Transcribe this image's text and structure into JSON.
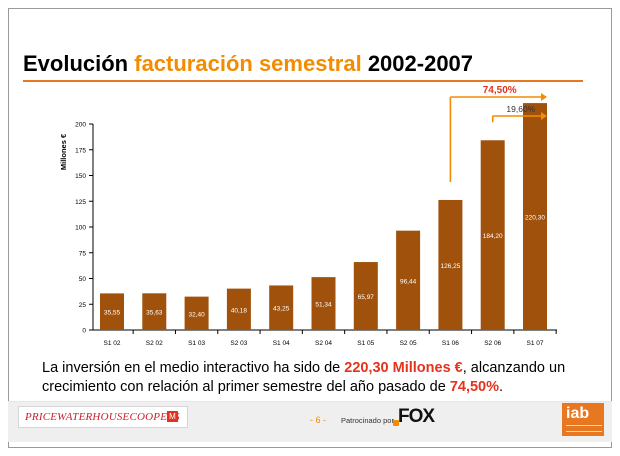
{
  "title": {
    "part1": "Evolución",
    "part2": "facturación semestral",
    "part3": "2002-2007"
  },
  "chart_data": {
    "type": "bar",
    "ylabel": "Millones €",
    "ylim": [
      0,
      200
    ],
    "yticks": [
      0,
      25,
      50,
      75,
      100,
      125,
      150,
      175,
      200
    ],
    "categories": [
      "S1 02",
      "S2 02",
      "S1 03",
      "S2 03",
      "S1 04",
      "S2 04",
      "S1 05",
      "S2 05",
      "S1 06",
      "S2 06",
      "S1 07"
    ],
    "values": [
      35.55,
      35.63,
      32.4,
      40.18,
      43.25,
      51.34,
      65.97,
      96.44,
      126.25,
      184.2,
      220.3
    ],
    "value_labels": [
      "35,55",
      "35,63",
      "32,40",
      "40,18",
      "43,25",
      "51,34",
      "65,97",
      "96,44",
      "126,25",
      "184,20",
      "220,30"
    ],
    "bar_color": "#a0520d",
    "annotations": [
      {
        "label": "74,50%",
        "from_index": 8,
        "to_index": 10,
        "color": "#e4331c",
        "bold": true
      },
      {
        "label": "19,60%",
        "from_index": 9,
        "to_index": 10,
        "color": "#333333",
        "bold": false
      }
    ],
    "arrow_color": "#f28c00",
    "grid": false
  },
  "summary": {
    "s1": "La inversión en el medio interactivo ha sido de ",
    "h1": "220,30 Millones €",
    "s2": ", alcanzando un crecimiento con relación al primer semestre del año pasado de ",
    "h2": "74,50%",
    "s3": "."
  },
  "footer": {
    "pwc": "PRICEWATERHOUSECOOPERS",
    "pwc_mark": "M",
    "page": "- 6 -",
    "sponsor": "Patrocinado por",
    "fox": "FOX",
    "iab": "iab"
  }
}
